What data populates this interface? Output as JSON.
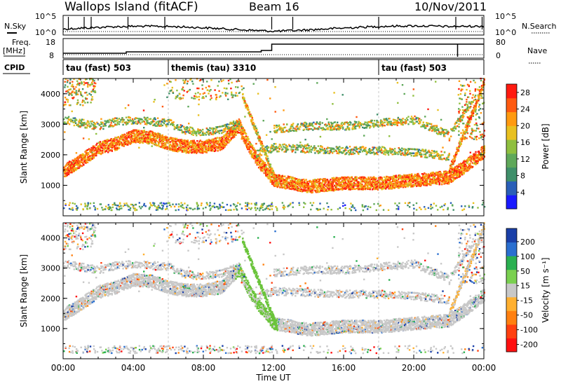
{
  "header": {
    "station": "Wallops Island (fitACF)",
    "beam": "Beam 16",
    "date": "10/Nov/2011"
  },
  "strip_labels": {
    "nsky": "N.Sky",
    "nsearch": "N.Search",
    "freq_line1": "Freq.",
    "freq_line2": "[MHz]",
    "nave": "Nave",
    "cpid": "CPID",
    "nsky_ticks": [
      "10^5",
      "10^0"
    ],
    "nsearch_ticks": [
      "10^5",
      "10^0"
    ],
    "freq_ticks": [
      "18",
      "8"
    ],
    "nave_ticks": [
      "80",
      "0"
    ]
  },
  "cpid_segments": [
    {
      "start_hour": 0,
      "end_hour": 6,
      "label": "tau (fast) 503"
    },
    {
      "start_hour": 6,
      "end_hour": 18,
      "label": "themis (tau) 3310"
    },
    {
      "start_hour": 18,
      "end_hour": 24,
      "label": "tau (fast) 503"
    }
  ],
  "chart_data": [
    {
      "type": "heatmap",
      "name": "power",
      "ylabel": "Slant Range [km]",
      "ylim": [
        0,
        4500
      ],
      "xlim": [
        0,
        24
      ],
      "yticks": [
        "1000",
        "2000",
        "3000",
        "4000"
      ],
      "colorbar": {
        "label": "Power [dB]",
        "ticks": [
          "4",
          "8",
          "12",
          "16",
          "20",
          "24",
          "28"
        ],
        "range": [
          0,
          30
        ],
        "colors": [
          "#1a1aff",
          "#2a5fb8",
          "#3f8f6a",
          "#5fa85a",
          "#8fbf3f",
          "#e8c020",
          "#ff9a10",
          "#ff5a10",
          "#ff1a10"
        ]
      },
      "bands": [
        {
          "kind": "main",
          "x": [
            0,
            1,
            2,
            3,
            4,
            5,
            6,
            7,
            8,
            9,
            10,
            10.5,
            11,
            12,
            14,
            16,
            18,
            20,
            22,
            23,
            24
          ],
          "y": [
            1400,
            1750,
            2150,
            2300,
            2550,
            2500,
            2300,
            2200,
            2200,
            2300,
            2900,
            2300,
            1800,
            1100,
            900,
            1000,
            1000,
            1100,
            1200,
            1600,
            2050
          ]
        },
        {
          "kind": "upper",
          "x": [
            0,
            1,
            2,
            3,
            4,
            5,
            6,
            7,
            8,
            9,
            10
          ],
          "y": [
            3100,
            3000,
            2900,
            3050,
            3100,
            3050,
            3000,
            2750,
            2700,
            2800,
            3000
          ]
        },
        {
          "kind": "upper",
          "x": [
            12,
            14,
            16,
            18,
            20,
            22,
            23.5
          ],
          "y": [
            2800,
            2900,
            2900,
            3000,
            3100,
            2600,
            3900
          ]
        },
        {
          "kind": "mid",
          "x": [
            11,
            12,
            14,
            16,
            18,
            20,
            22
          ],
          "y": [
            2000,
            2200,
            2150,
            2100,
            2100,
            2050,
            1900
          ]
        }
      ]
    },
    {
      "type": "heatmap",
      "name": "velocity",
      "ylabel": "Slant Range [km]",
      "xlabel": "Time UT",
      "ylim": [
        0,
        4500
      ],
      "xlim": [
        0,
        24
      ],
      "yticks": [
        "1000",
        "2000",
        "3000",
        "4000"
      ],
      "xticks": [
        "00:00",
        "04:00",
        "08:00",
        "12:00",
        "16:00",
        "20:00",
        "00:00"
      ],
      "colorbar": {
        "label": "Velocity [m s⁻¹]",
        "ticks": [
          "200",
          "100",
          "50",
          "15",
          "-15",
          "-50",
          "-100",
          "-200"
        ],
        "range": [
          -250,
          250
        ],
        "colors": [
          "#1a3fa8",
          "#2a6fd0",
          "#2ab050",
          "#7ad050",
          "#c8c8c8",
          "#ffb030",
          "#ff8010",
          "#ff4010",
          "#ff1010"
        ]
      }
    }
  ]
}
